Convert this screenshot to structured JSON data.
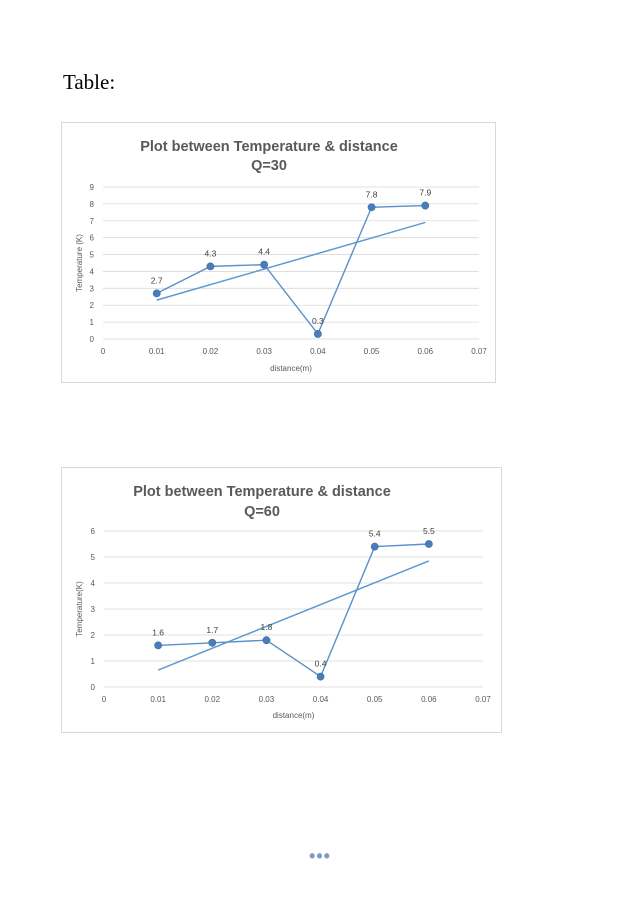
{
  "document": {
    "heading": "Table:",
    "footer_ellipsis": "•••"
  },
  "colors": {
    "series": "#5b8fc9",
    "marker": "#4a7ebb",
    "trend": "#5b9bd5",
    "grid": "#d9d9d9",
    "text": "#595959"
  },
  "chart_data": [
    {
      "type": "line",
      "title": "Plot between Temperature & distance",
      "subtitle": "Q=30",
      "xlabel": "distance(m)",
      "ylabel": "Temperature (K)",
      "xlim": [
        0,
        0.07
      ],
      "ylim": [
        0,
        9
      ],
      "xticks": [
        "0",
        "0.01",
        "0.02",
        "0.03",
        "0.04",
        "0.05",
        "0.06",
        "0.07"
      ],
      "yticks": [
        "0",
        "1",
        "2",
        "3",
        "4",
        "5",
        "6",
        "7",
        "8",
        "9"
      ],
      "grid": true,
      "series": [
        {
          "x": [
            0.01,
            0.02,
            0.03,
            0.04,
            0.05,
            0.06
          ],
          "y": [
            2.7,
            4.3,
            4.4,
            0.3,
            7.8,
            7.9
          ],
          "labels": [
            "2.7",
            "4.3",
            "4.4",
            "0.3",
            "7.8",
            "7.9"
          ]
        }
      ],
      "trendline": {
        "x": [
          0.01,
          0.06
        ],
        "y": [
          2.3,
          6.9
        ]
      }
    },
    {
      "type": "line",
      "title": "Plot between Temperature & distance",
      "subtitle": "Q=60",
      "xlabel": "distance(m)",
      "ylabel": "Temperature(K)",
      "xlim": [
        0,
        0.07
      ],
      "ylim": [
        0,
        6
      ],
      "xticks": [
        "0",
        "0.01",
        "0.02",
        "0.03",
        "0.04",
        "0.05",
        "0.06",
        "0.07"
      ],
      "yticks": [
        "0",
        "1",
        "2",
        "3",
        "4",
        "5",
        "6"
      ],
      "grid": true,
      "series": [
        {
          "x": [
            0.01,
            0.02,
            0.03,
            0.04,
            0.05,
            0.06
          ],
          "y": [
            1.6,
            1.7,
            1.8,
            0.4,
            5.4,
            5.5
          ],
          "labels": [
            "1.6",
            "1.7",
            "1.8",
            "0.4",
            "5.4",
            "5.5"
          ]
        }
      ],
      "trendline": {
        "x": [
          0.01,
          0.06
        ],
        "y": [
          0.65,
          4.85
        ]
      }
    }
  ]
}
